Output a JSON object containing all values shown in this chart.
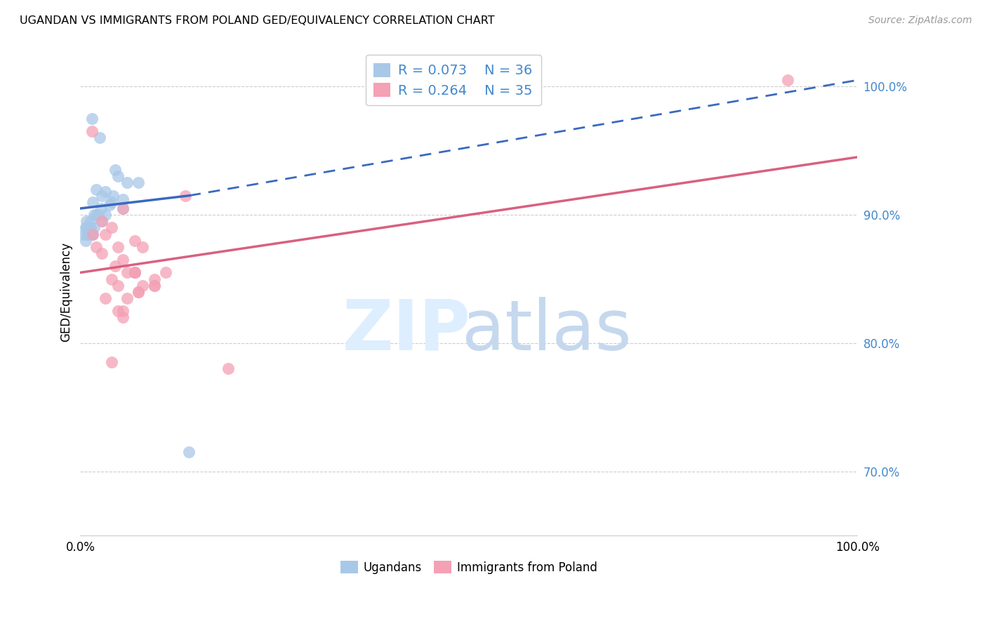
{
  "title": "UGANDAN VS IMMIGRANTS FROM POLAND GED/EQUIVALENCY CORRELATION CHART",
  "source": "Source: ZipAtlas.com",
  "ylabel": "GED/Equivalency",
  "legend_blue_r": "R = 0.073",
  "legend_blue_n": "N = 36",
  "legend_pink_r": "R = 0.264",
  "legend_pink_n": "N = 35",
  "legend_label_blue": "Ugandans",
  "legend_label_pink": "Immigrants from Poland",
  "blue_scatter_color": "#a8c8e8",
  "pink_scatter_color": "#f4a0b5",
  "blue_line_color": "#3a6abf",
  "pink_line_color": "#d96080",
  "legend_blue_color": "#a8c8e8",
  "legend_pink_color": "#f4a0b5",
  "ugandan_x": [
    1.5,
    2.5,
    6.0,
    4.5,
    5.5,
    2.0,
    2.8,
    3.2,
    4.8,
    0.8,
    1.8,
    1.2,
    1.0,
    2.8,
    1.5,
    2.3,
    3.8,
    0.5,
    0.7,
    4.2,
    7.5,
    1.3,
    1.6,
    2.0,
    2.7,
    0.8,
    1.0,
    3.2,
    1.8,
    4.0,
    1.3,
    5.5,
    0.7,
    0.9,
    1.6,
    14.0
  ],
  "ugandan_y": [
    97.5,
    96.0,
    92.5,
    93.5,
    90.5,
    92.0,
    91.5,
    91.8,
    93.0,
    89.5,
    90.0,
    89.0,
    88.5,
    89.5,
    88.5,
    90.0,
    90.8,
    88.5,
    88.0,
    91.5,
    92.5,
    89.5,
    91.0,
    90.0,
    90.5,
    89.0,
    88.5,
    90.0,
    89.0,
    91.0,
    89.0,
    91.2,
    89.0,
    88.5,
    88.5,
    71.5
  ],
  "poland_x": [
    1.5,
    8.0,
    4.5,
    13.5,
    2.0,
    5.5,
    7.0,
    7.0,
    8.0,
    3.2,
    4.8,
    4.0,
    6.0,
    7.5,
    9.5,
    11.0,
    5.5,
    2.8,
    4.8,
    7.0,
    1.6,
    4.0,
    9.5,
    7.5,
    3.2,
    4.8,
    5.5,
    7.0,
    4.0,
    5.5,
    2.8,
    6.0,
    19.0,
    91.0,
    9.5
  ],
  "poland_y": [
    96.5,
    87.5,
    86.0,
    91.5,
    87.5,
    90.5,
    88.0,
    85.5,
    84.5,
    88.5,
    87.5,
    85.0,
    83.5,
    84.0,
    84.5,
    85.5,
    82.5,
    87.0,
    84.5,
    85.5,
    88.5,
    89.0,
    85.0,
    84.0,
    83.5,
    82.5,
    82.0,
    85.5,
    78.5,
    86.5,
    89.5,
    85.5,
    78.0,
    100.5,
    84.5
  ],
  "xmin": 0,
  "xmax": 100,
  "ymin": 65,
  "ymax": 103,
  "blue_solid_x0": 0,
  "blue_solid_x1": 14,
  "blue_solid_y0": 90.5,
  "blue_solid_y1": 91.5,
  "blue_dashed_x0": 14,
  "blue_dashed_x1": 100,
  "blue_dashed_y0": 91.5,
  "blue_dashed_y1": 100.5,
  "pink_solid_x0": 0,
  "pink_solid_x1": 100,
  "pink_solid_y0": 85.5,
  "pink_solid_y1": 94.5,
  "y_ticks": [
    70,
    80,
    90,
    100
  ],
  "x_tick_left_label": "0.0%",
  "x_tick_right_label": "100.0%",
  "watermark_zip_color": "#ddeeff",
  "watermark_atlas_color": "#c5d8ee"
}
